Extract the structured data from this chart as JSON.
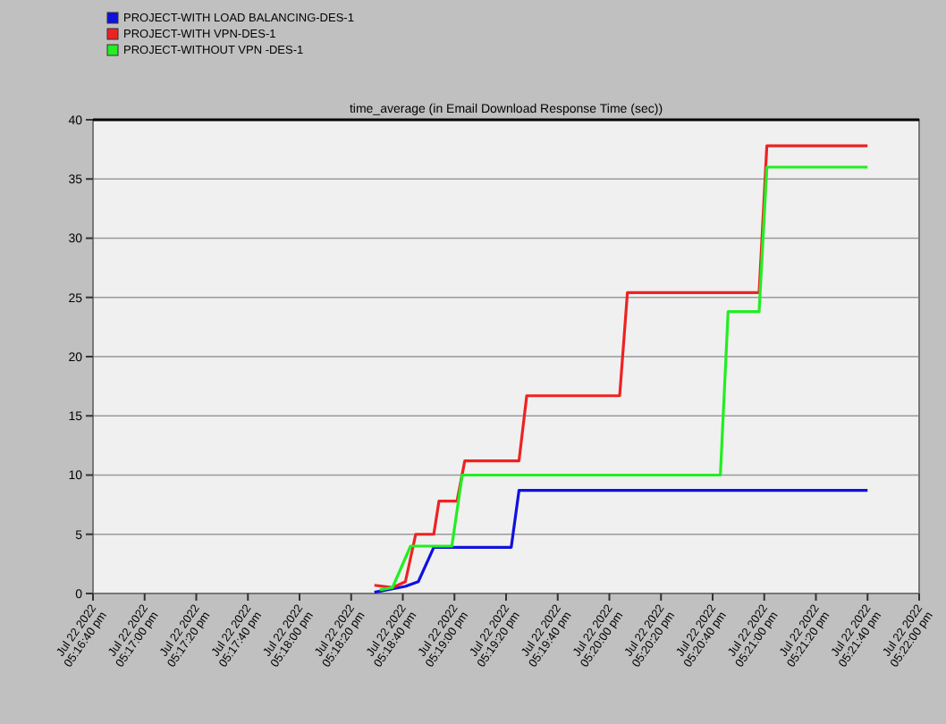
{
  "chart_data": {
    "type": "line",
    "title": "time_average (in Email Download Response Time (sec))",
    "legend": "top left",
    "grid": "y",
    "marker": "none",
    "line_style": "solid",
    "xlim": [
      "2022-07-22T17:16:40",
      "2022-07-22T17:22:00"
    ],
    "xticks": [
      {
        "value": "2022-07-22T17:16:40",
        "label": "Jul 22 2022\n05:16:40 pm"
      },
      {
        "value": "2022-07-22T17:17:00",
        "label": "Jul 22 2022\n05:17:00 pm"
      },
      {
        "value": "2022-07-22T17:17:20",
        "label": "Jul 22 2022\n05:17:20 pm"
      },
      {
        "value": "2022-07-22T17:17:40",
        "label": "Jul 22 2022\n05:17:40 pm"
      },
      {
        "value": "2022-07-22T17:18:00",
        "label": "Jul 22 2022\n05:18:00 pm"
      },
      {
        "value": "2022-07-22T17:18:20",
        "label": "Jul 22 2022\n05:18:20 pm"
      },
      {
        "value": "2022-07-22T17:18:40",
        "label": "Jul 22 2022\n05:18:40 pm"
      },
      {
        "value": "2022-07-22T17:19:00",
        "label": "Jul 22 2022\n05:19:00 pm"
      },
      {
        "value": "2022-07-22T17:19:20",
        "label": "Jul 22 2022\n05:19:20 pm"
      },
      {
        "value": "2022-07-22T17:19:40",
        "label": "Jul 22 2022\n05:19:40 pm"
      },
      {
        "value": "2022-07-22T17:20:00",
        "label": "Jul 22 2022\n05:20:00 pm"
      },
      {
        "value": "2022-07-22T17:20:20",
        "label": "Jul 22 2022\n05:20:20 pm"
      },
      {
        "value": "2022-07-22T17:20:40",
        "label": "Jul 22 2022\n05:20:40 pm"
      },
      {
        "value": "2022-07-22T17:21:00",
        "label": "Jul 22 2022\n05:21:00 pm"
      },
      {
        "value": "2022-07-22T17:21:20",
        "label": "Jul 22 2022\n05:21:20 pm"
      },
      {
        "value": "2022-07-22T17:21:40",
        "label": "Jul 22 2022\n05:21:40 pm"
      },
      {
        "value": "2022-07-22T17:22:00",
        "label": "Jul 22 2022\n05:22:00 pm"
      }
    ],
    "ylim": [
      0,
      40
    ],
    "yticks": [
      0,
      5,
      10,
      15,
      20,
      25,
      30,
      35,
      40
    ],
    "series": [
      {
        "name": "PROJECT-WITH LOAD BALANCING-DES-1",
        "color": "#1010e0",
        "x": [
          "2022-07-22T17:18:29",
          "2022-07-22T17:18:41",
          "2022-07-22T17:18:46",
          "2022-07-22T17:18:52",
          "2022-07-22T17:19:22",
          "2022-07-22T17:19:25",
          "2022-07-22T17:21:40"
        ],
        "values": [
          0.1,
          0.6,
          1,
          3.9,
          3.9,
          8.7,
          8.7
        ]
      },
      {
        "name": "PROJECT-WITH VPN-DES-1",
        "color": "#ee2222",
        "x": [
          "2022-07-22T17:18:29",
          "2022-07-22T17:18:36",
          "2022-07-22T17:18:41",
          "2022-07-22T17:18:45",
          "2022-07-22T17:18:52",
          "2022-07-22T17:18:54",
          "2022-07-22T17:19:01",
          "2022-07-22T17:19:04",
          "2022-07-22T17:19:25",
          "2022-07-22T17:19:28",
          "2022-07-22T17:20:04",
          "2022-07-22T17:20:07",
          "2022-07-22T17:20:58",
          "2022-07-22T17:21:01",
          "2022-07-22T17:21:40"
        ],
        "values": [
          0.7,
          0.5,
          1,
          5,
          5,
          7.8,
          7.8,
          11.2,
          11.2,
          16.7,
          16.7,
          25.4,
          25.4,
          37.8,
          37.8
        ]
      },
      {
        "name": "PROJECT-WITHOUT VPN -DES-1",
        "color": "#22ee22",
        "x": [
          "2022-07-22T17:18:31",
          "2022-07-22T17:18:36",
          "2022-07-22T17:18:43",
          "2022-07-22T17:18:59",
          "2022-07-22T17:19:03",
          "2022-07-22T17:20:43",
          "2022-07-22T17:20:46",
          "2022-07-22T17:20:58",
          "2022-07-22T17:21:01",
          "2022-07-22T17:21:40"
        ],
        "values": [
          0.3,
          0.5,
          4,
          4,
          10,
          10,
          23.8,
          23.8,
          36,
          36
        ]
      }
    ]
  }
}
